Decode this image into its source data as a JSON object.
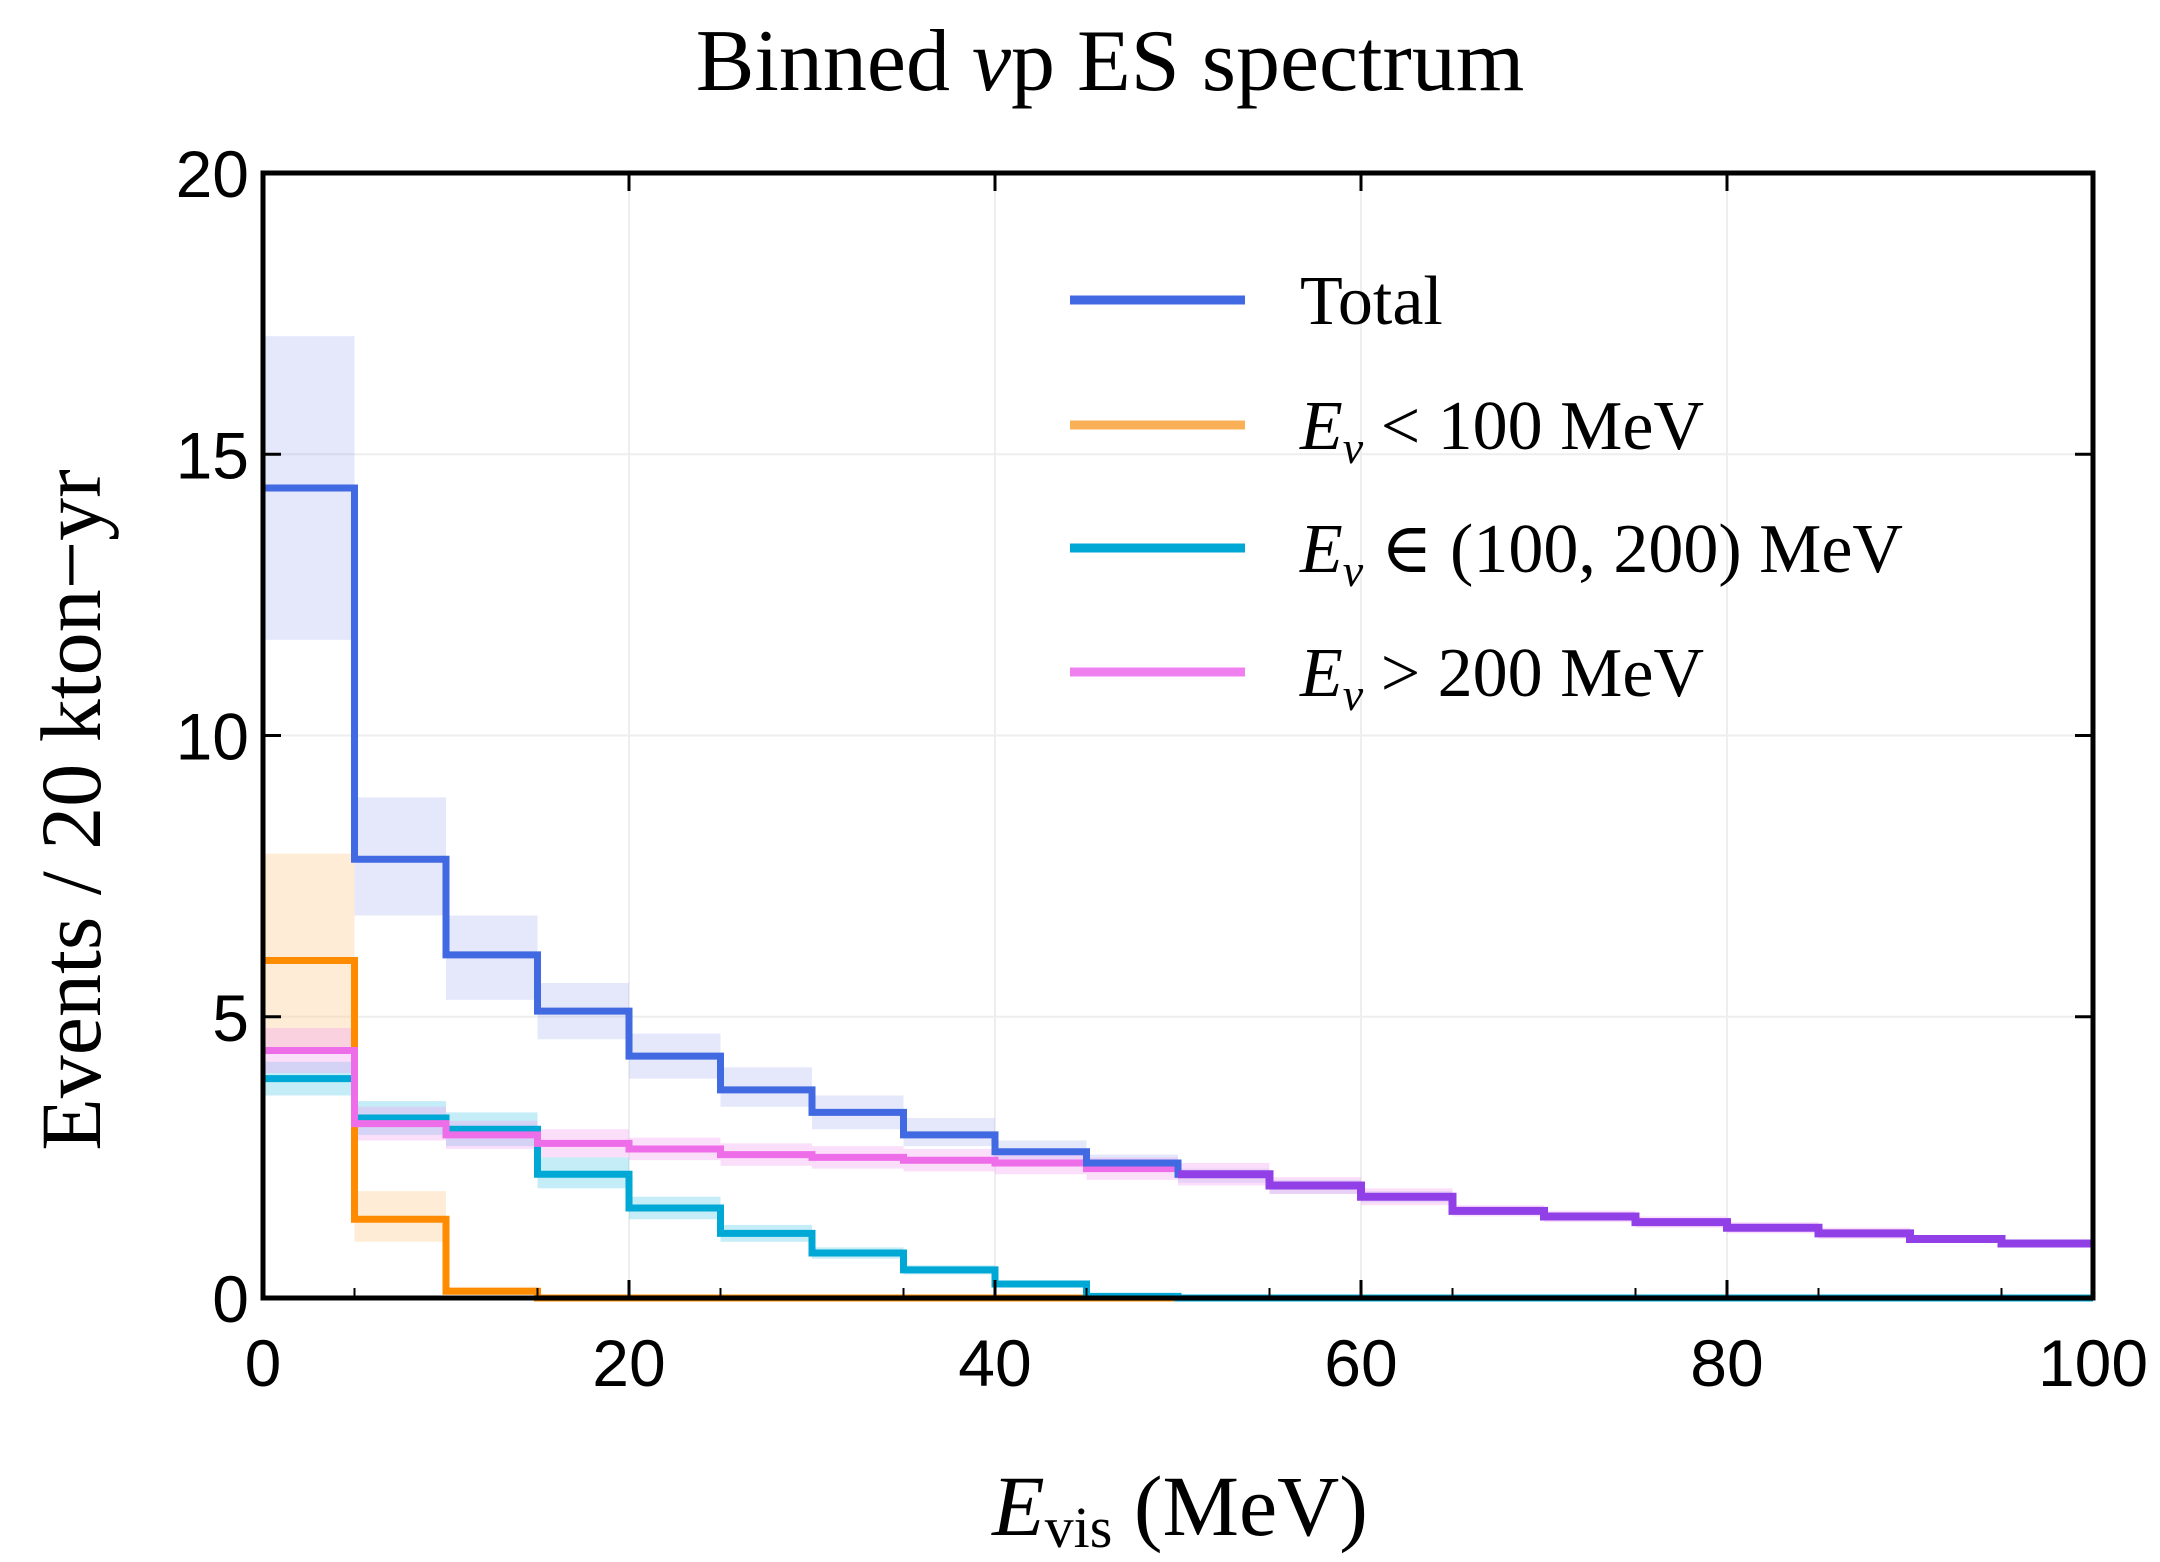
{
  "chart_data": {
    "type": "line",
    "title": "Binned νp ES spectrum",
    "title_parts": {
      "prefix": "Binned ",
      "nu": "ν",
      "p": "p",
      "suffix": " ES spectrum"
    },
    "xlabel": "E_vis (MeV)",
    "xlabel_parts": {
      "E": "E",
      "sub": "vis",
      "rest": " (MeV)"
    },
    "ylabel": "Events / 20 kton−yr",
    "xlim": [
      0,
      100
    ],
    "ylim": [
      0,
      20
    ],
    "xticks": [
      0,
      20,
      40,
      60,
      80,
      100
    ],
    "yticks": [
      0,
      5,
      10,
      15,
      20
    ],
    "grid": true,
    "legend_position": "top-right",
    "bin_edges": [
      0,
      5,
      10,
      15,
      20,
      25,
      30,
      35,
      40,
      45,
      50,
      55,
      60,
      65,
      70,
      75,
      80,
      85,
      90,
      95,
      100
    ],
    "series": [
      {
        "name": "Total",
        "legend": {
          "E": "",
          "nu": "",
          "text": "Total"
        },
        "color": "#4169e1",
        "band_color": "#6a7fe6",
        "values": [
          14.4,
          7.8,
          6.1,
          5.1,
          4.3,
          3.7,
          3.3,
          2.9,
          2.6,
          2.4,
          2.2,
          2.0,
          1.8,
          1.55,
          1.45,
          1.35,
          1.25,
          1.15,
          1.05,
          0.97
        ],
        "band": [
          [
            11.7,
            17.1
          ],
          [
            6.8,
            8.9
          ],
          [
            5.3,
            6.8
          ],
          [
            4.6,
            5.6
          ],
          [
            3.9,
            4.7
          ],
          [
            3.4,
            4.1
          ],
          [
            3.0,
            3.6
          ],
          [
            2.7,
            3.2
          ],
          [
            2.45,
            2.8
          ],
          [
            2.25,
            2.55
          ],
          [
            2.05,
            2.3
          ],
          [
            1.85,
            2.1
          ],
          [
            1.7,
            1.9
          ],
          [
            1.5,
            1.6
          ],
          [
            1.4,
            1.5
          ],
          [
            1.3,
            1.4
          ],
          [
            1.2,
            1.3
          ],
          [
            1.1,
            1.2
          ],
          [
            1.0,
            1.1
          ],
          [
            0.93,
            1.01
          ]
        ]
      },
      {
        "name": "E_ν < 100 MeV",
        "legend": {
          "E": "E",
          "nu": "ν",
          "text": " < 100 MeV"
        },
        "color": "#ff8c00",
        "legend_color": "#f9b057",
        "band_color": "#fbc88a",
        "values": [
          6.0,
          1.4,
          0.12,
          0,
          0,
          0,
          0,
          0,
          0,
          0,
          0,
          0,
          0,
          0,
          0,
          0,
          0,
          0,
          0,
          0
        ],
        "band": [
          [
            4.4,
            7.9
          ],
          [
            1.0,
            1.9
          ],
          [
            0.06,
            0.2
          ],
          [
            0,
            0
          ],
          [
            0,
            0
          ],
          [
            0,
            0
          ],
          [
            0,
            0
          ],
          [
            0,
            0
          ],
          [
            0,
            0
          ],
          [
            0,
            0
          ],
          [
            0,
            0
          ],
          [
            0,
            0
          ],
          [
            0,
            0
          ],
          [
            0,
            0
          ],
          [
            0,
            0
          ],
          [
            0,
            0
          ],
          [
            0,
            0
          ],
          [
            0,
            0
          ],
          [
            0,
            0
          ],
          [
            0,
            0
          ]
        ]
      },
      {
        "name": "E_ν ∈ (100, 200) MeV",
        "legend": {
          "E": "E",
          "nu": "ν",
          "text": " ∈ (100, 200) MeV"
        },
        "color": "#00a8d6",
        "band_color": "#55cbe8",
        "values": [
          3.9,
          3.2,
          3.0,
          2.2,
          1.6,
          1.15,
          0.8,
          0.5,
          0.25,
          0.03,
          0,
          0,
          0,
          0,
          0,
          0,
          0,
          0,
          0,
          0
        ],
        "band": [
          [
            3.6,
            4.2
          ],
          [
            2.9,
            3.5
          ],
          [
            2.7,
            3.3
          ],
          [
            1.95,
            2.5
          ],
          [
            1.4,
            1.8
          ],
          [
            1.0,
            1.3
          ],
          [
            0.7,
            0.9
          ],
          [
            0.42,
            0.58
          ],
          [
            0.2,
            0.3
          ],
          [
            0.01,
            0.05
          ],
          [
            0,
            0
          ],
          [
            0,
            0
          ],
          [
            0,
            0
          ],
          [
            0,
            0
          ],
          [
            0,
            0
          ],
          [
            0,
            0
          ],
          [
            0,
            0
          ],
          [
            0,
            0
          ],
          [
            0,
            0
          ],
          [
            0,
            0
          ]
        ]
      },
      {
        "name": "E_ν > 200 MeV",
        "legend": {
          "E": "E",
          "nu": "ν",
          "text": " > 200 MeV"
        },
        "color": "#ee6de8",
        "legend_color": "#f07ff0",
        "band_color": "#f3a3f0",
        "values": [
          4.4,
          3.1,
          2.9,
          2.75,
          2.65,
          2.55,
          2.5,
          2.45,
          2.4,
          2.3,
          2.2,
          2.0,
          1.8,
          1.55,
          1.45,
          1.35,
          1.25,
          1.15,
          1.05,
          0.97
        ],
        "band": [
          [
            4.0,
            4.8
          ],
          [
            2.8,
            3.4
          ],
          [
            2.65,
            3.15
          ],
          [
            2.5,
            3.0
          ],
          [
            2.45,
            2.85
          ],
          [
            2.35,
            2.75
          ],
          [
            2.3,
            2.7
          ],
          [
            2.25,
            2.65
          ],
          [
            2.2,
            2.6
          ],
          [
            2.1,
            2.5
          ],
          [
            2.0,
            2.4
          ],
          [
            1.85,
            2.15
          ],
          [
            1.65,
            1.95
          ],
          [
            1.45,
            1.65
          ],
          [
            1.35,
            1.55
          ],
          [
            1.25,
            1.45
          ],
          [
            1.15,
            1.35
          ],
          [
            1.05,
            1.25
          ],
          [
            0.98,
            1.12
          ],
          [
            0.9,
            1.04
          ]
        ]
      }
    ],
    "overlap_color": "#9040e6"
  }
}
